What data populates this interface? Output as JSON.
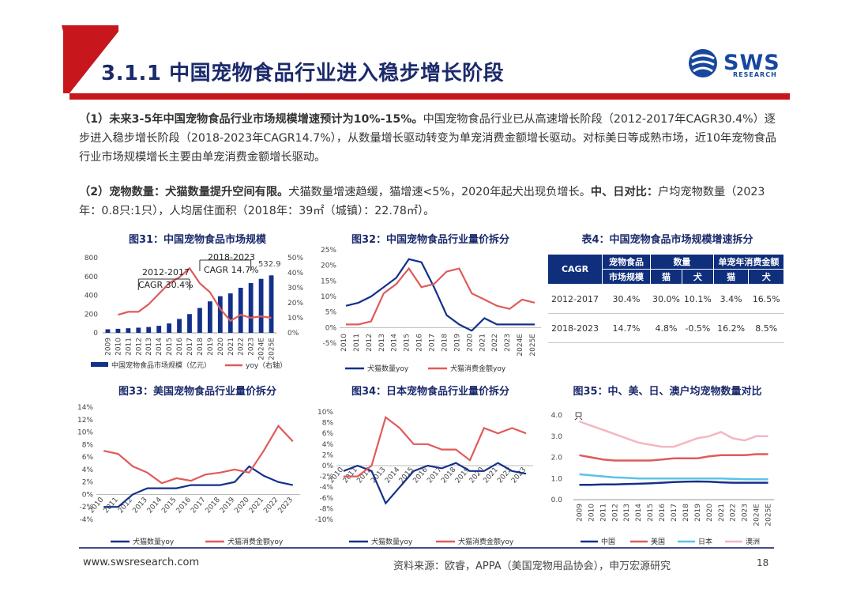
{
  "header": {
    "title": "3.1.1 中国宠物食品行业进入稳步增长阶段",
    "logo_text": "SWS",
    "logo_sub": "RESEARCH"
  },
  "paragraphs": {
    "p1_bold": "（1）未来3-5年中国宠物食品行业市场规模增速预计为10%-15%。",
    "p1_text": "中国宠物食品行业已从高速增长阶段（2012-2017年CAGR30.4%）逐步进入稳步增长阶段（2018-2023年CAGR14.7%），从数量增长驱动转变为单宠消费金额增长驱动。对标美日等成熟市场，近10年宠物食品行业市场规模增长主要由单宠消费金额增长驱动。",
    "p2_bold1": "（2）宠物数量：犬猫数量提升空间有限。",
    "p2_text1": "犬猫数量增速趋缓，猫增速<5%，2020年起犬出现负增长。",
    "p2_bold2": "中、日对比：",
    "p2_text2": "户均宠物数量（2023年：0.8只:1只），人均居住面积（2018年：39㎡（城镇）：22.78㎡）。"
  },
  "colors": {
    "navy": "#1b2a6b",
    "bar": "#13318a",
    "red": "#e05a5a",
    "accent_red": "#c8161d",
    "teal": "#5bc3e8",
    "pink": "#f4b6c2"
  },
  "chart_data": [
    {
      "id": "fig31",
      "type": "bar",
      "title": "图31：中国宠物食品市场规模",
      "categories": [
        "2009",
        "2010",
        "2011",
        "2012",
        "2013",
        "2014",
        "2015",
        "2016",
        "2017",
        "2018",
        "2019",
        "2020",
        "2021",
        "2022",
        "2023",
        "2024E",
        "2025E"
      ],
      "series": [
        {
          "name": "中国宠物食品市场规模（亿元）",
          "type": "bar",
          "axis": "left",
          "values": [
            38,
            43,
            49,
            55,
            62,
            75,
            100,
            148,
            200,
            265,
            335,
            390,
            420,
            480,
            530,
            575,
            612
          ]
        },
        {
          "name": "yoy（右轴）",
          "type": "line",
          "axis": "right",
          "values": [
            null,
            12,
            14,
            14,
            19,
            26,
            33,
            37,
            43,
            33,
            27,
            16,
            8,
            12,
            10,
            11,
            10
          ]
        }
      ],
      "ylim": [
        0,
        800
      ],
      "y2lim": [
        0,
        50
      ],
      "yticks": [
        "0",
        "200",
        "400",
        "600",
        "800"
      ],
      "y2ticks": [
        "0%",
        "10%",
        "20%",
        "30%",
        "40%",
        "50%"
      ],
      "annotations": [
        "2012-2017",
        "CAGR 30.4%",
        "2018-2023",
        "CAGR 14.7%",
        "532.9"
      ],
      "legend": [
        "中国宠物食品市场规模（亿元）",
        "yoy（右轴）"
      ]
    },
    {
      "id": "fig32",
      "type": "line",
      "title": "图32：中国宠物食品行业量价拆分",
      "categories": [
        "2010",
        "2011",
        "2012",
        "2013",
        "2014",
        "2015",
        "2016",
        "2017",
        "2018",
        "2019",
        "2020",
        "2021",
        "2022",
        "2023",
        "2024E",
        "2025E"
      ],
      "series": [
        {
          "name": "犬猫数量yoy",
          "values": [
            7,
            8,
            10,
            13,
            16,
            22,
            21,
            13,
            4,
            1,
            -1,
            3,
            1,
            1,
            1,
            1
          ]
        },
        {
          "name": "犬猫消费金额yoy",
          "values": [
            1,
            1,
            2,
            11,
            14,
            19,
            13,
            14,
            18,
            19,
            11,
            9,
            7,
            6,
            9,
            8
          ]
        }
      ],
      "ylim": [
        -5,
        25
      ],
      "yticks": [
        "-5%",
        "0%",
        "5%",
        "10%",
        "15%",
        "20%",
        "25%"
      ],
      "legend": [
        "犬猫数量yoy",
        "犬猫消费金额yoy"
      ]
    },
    {
      "id": "table4",
      "type": "table",
      "title": "表4：中国宠物食品市场规模增速拆分",
      "header_row1": [
        "CAGR",
        "宠物食品",
        "数量",
        "单宠年消费金额"
      ],
      "header_row2": [
        "市场规模",
        "猫",
        "犬",
        "猫",
        "犬"
      ],
      "rows": [
        [
          "2012-2017",
          "30.4%",
          "30.0%",
          "10.1%",
          "3.4%",
          "16.5%"
        ],
        [
          "2018-2023",
          "14.7%",
          "4.8%",
          "-0.5%",
          "16.2%",
          "8.5%"
        ]
      ],
      "highlighted": [
        "30.0%",
        "16.2%"
      ]
    },
    {
      "id": "fig33",
      "type": "line",
      "title": "图33：美国宠物食品行业量价拆分",
      "categories": [
        "2010",
        "2011",
        "2012",
        "2013",
        "2014",
        "2015",
        "2016",
        "2017",
        "2018",
        "2019",
        "2020",
        "2021",
        "2022",
        "2023"
      ],
      "series": [
        {
          "name": "犬猫数量yoy",
          "values": [
            -2,
            -2,
            0,
            1,
            1,
            1,
            1.5,
            1.5,
            1.5,
            2,
            4.5,
            3,
            2,
            1.5
          ]
        },
        {
          "name": "犬猫消费金额yoy",
          "values": [
            7,
            6.5,
            4.5,
            3.5,
            1.8,
            2.6,
            2.2,
            3.2,
            3.5,
            4,
            3.5,
            7,
            11,
            8.5
          ]
        }
      ],
      "ylim": [
        -4,
        14
      ],
      "yticks": [
        "-4%",
        "-2%",
        "0%",
        "2%",
        "4%",
        "6%",
        "8%",
        "10%",
        "12%",
        "14%"
      ],
      "legend": [
        "犬猫数量yoy",
        "犬猫消费金额yoy"
      ]
    },
    {
      "id": "fig34",
      "type": "line",
      "title": "图34：日本宠物食品行业量价拆分",
      "categories": [
        "2010",
        "2011",
        "2012",
        "2013",
        "2014",
        "2015",
        "2016",
        "2017",
        "2018",
        "2019",
        "2020",
        "2021",
        "2022",
        "2023"
      ],
      "series": [
        {
          "name": "犬猫数量yoy",
          "values": [
            -1,
            0,
            -1,
            -7,
            -4,
            -1,
            0,
            -0.5,
            0.5,
            -1,
            -1,
            0.5,
            -1,
            -1.5
          ]
        },
        {
          "name": "犬猫消费金额yoy",
          "values": [
            -2,
            -2,
            0,
            9,
            7,
            4,
            4,
            3,
            3,
            1,
            7,
            6,
            7,
            6
          ]
        }
      ],
      "ylim": [
        -10,
        10
      ],
      "yticks": [
        "-10%",
        "-8%",
        "-6%",
        "-4%",
        "-2%",
        "0%",
        "2%",
        "4%",
        "6%",
        "8%",
        "10%"
      ],
      "legend": [
        "犬猫数量yoy",
        "犬猫消费金额yoy"
      ]
    },
    {
      "id": "fig35",
      "type": "line",
      "title": "图35：中、美、日、澳户均宠物数量对比",
      "ylabel": "只",
      "categories": [
        "2009",
        "2010",
        "2011",
        "2012",
        "2013",
        "2014",
        "2015",
        "2016",
        "2017",
        "2018",
        "2019",
        "2020",
        "2021",
        "2022",
        "2023",
        "2024E",
        "2025E"
      ],
      "series": [
        {
          "name": "中国",
          "values": [
            0.7,
            0.7,
            0.72,
            0.72,
            0.74,
            0.75,
            0.77,
            0.8,
            0.83,
            0.85,
            0.86,
            0.85,
            0.82,
            0.8,
            0.8,
            0.8,
            0.8
          ]
        },
        {
          "name": "美国",
          "values": [
            2.1,
            2.0,
            1.9,
            1.85,
            1.85,
            1.85,
            1.85,
            1.9,
            1.95,
            1.95,
            1.95,
            2.05,
            2.1,
            2.1,
            2.1,
            2.15,
            2.15
          ]
        },
        {
          "name": "日本",
          "values": [
            1.2,
            1.15,
            1.1,
            1.05,
            1.03,
            1.0,
            1.0,
            1.0,
            1.0,
            1.0,
            1.0,
            1.0,
            1.0,
            0.98,
            0.97,
            0.96,
            0.96
          ]
        },
        {
          "name": "澳洲",
          "values": [
            3.7,
            3.5,
            3.3,
            3.1,
            2.9,
            2.7,
            2.6,
            2.5,
            2.5,
            2.7,
            2.9,
            3.0,
            3.2,
            2.9,
            2.8,
            3.0,
            3.0
          ]
        }
      ],
      "ylim": [
        0,
        4
      ],
      "yticks": [
        "0.0",
        "1.0",
        "2.0",
        "3.0",
        "4.0"
      ],
      "legend": [
        "中国",
        "美国",
        "日本",
        "澳洲"
      ]
    }
  ],
  "footer": {
    "url": "www.swsresearch.com",
    "source": "资料来源：欧睿，APPA（美国宠物用品协会），申万宏源研究",
    "page": "18"
  }
}
